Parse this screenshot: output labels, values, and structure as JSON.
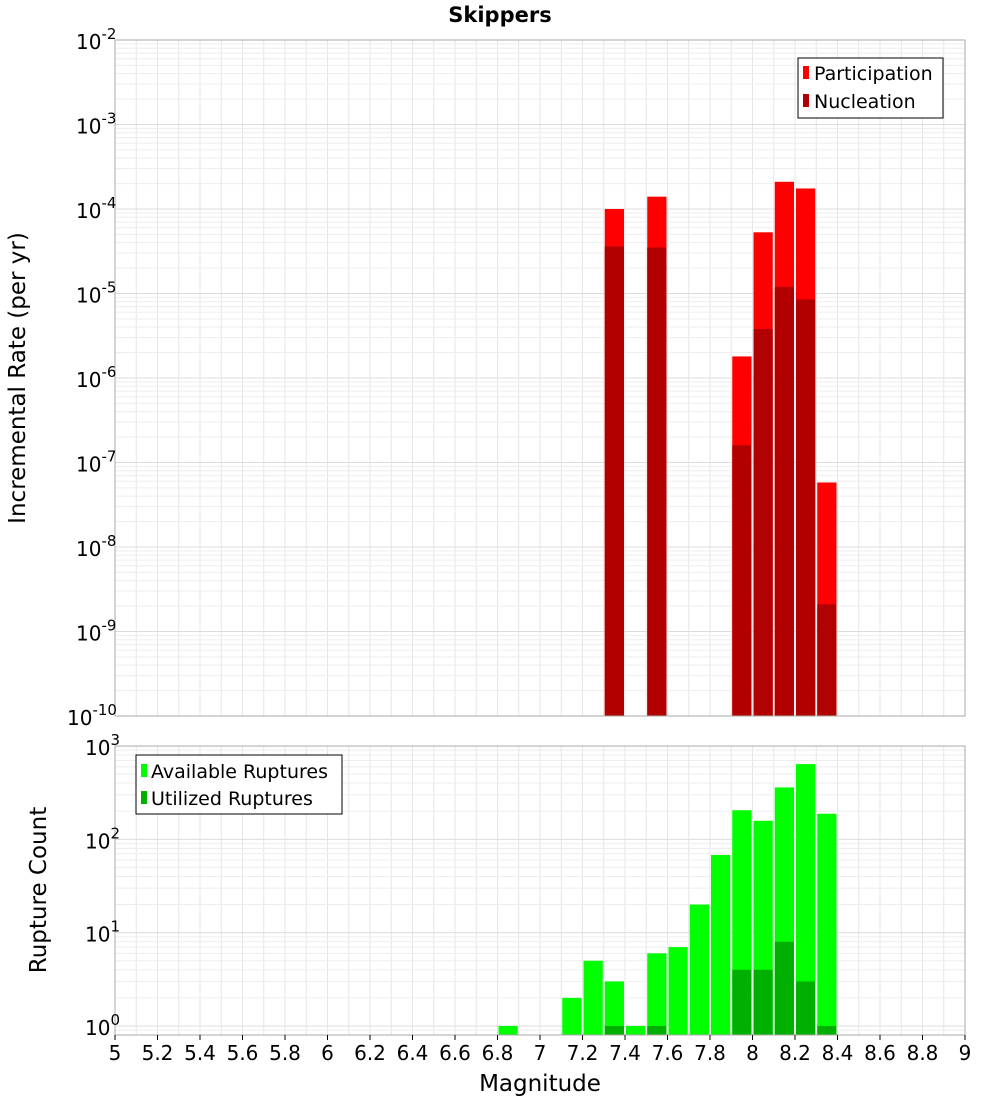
{
  "chart_data": [
    {
      "type": "bar",
      "title": "Skippers",
      "ylabel": "Incremental Rate (per yr)",
      "xlabel": "",
      "y_scale": "log",
      "ylim": [
        1e-10,
        0.01
      ],
      "xlim": [
        5,
        9
      ],
      "y_ticks": [
        {
          "base": "10",
          "exp": "-10"
        },
        {
          "base": "10",
          "exp": "-9"
        },
        {
          "base": "10",
          "exp": "-8"
        },
        {
          "base": "10",
          "exp": "-7"
        },
        {
          "base": "10",
          "exp": "-6"
        },
        {
          "base": "10",
          "exp": "-5"
        },
        {
          "base": "10",
          "exp": "-4"
        },
        {
          "base": "10",
          "exp": "-3"
        },
        {
          "base": "10",
          "exp": "-2"
        }
      ],
      "legend_position": "top-right",
      "grid": true,
      "bin_width": 0.1,
      "series": [
        {
          "name": "Participation",
          "color": "#ff0000",
          "x": [
            7.35,
            7.55,
            7.95,
            8.05,
            8.15,
            8.25,
            8.35
          ],
          "values": [
            0.0001,
            0.00014,
            1.8e-06,
            5.3e-05,
            0.00021,
            0.000175,
            5.8e-08
          ]
        },
        {
          "name": "Nucleation",
          "color": "#b20000",
          "x": [
            7.35,
            7.55,
            7.95,
            8.05,
            8.15,
            8.25,
            8.35
          ],
          "values": [
            3.6e-05,
            3.5e-05,
            1.6e-07,
            3.8e-06,
            1.2e-05,
            8.5e-06,
            2.1e-09
          ]
        }
      ]
    },
    {
      "type": "bar",
      "title": "",
      "ylabel": "Rupture Count",
      "xlabel": "Magnitude",
      "y_scale": "log",
      "ylim": [
        0.8,
        1000
      ],
      "xlim": [
        5,
        9
      ],
      "x_ticks": [
        "5",
        "5.2",
        "5.4",
        "5.6",
        "5.8",
        "6",
        "6.2",
        "6.4",
        "6.6",
        "6.8",
        "7",
        "7.2",
        "7.4",
        "7.6",
        "7.8",
        "8",
        "8.2",
        "8.4",
        "8.6",
        "8.8",
        "9"
      ],
      "y_ticks": [
        {
          "base": "10",
          "exp": "0"
        },
        {
          "base": "10",
          "exp": "1"
        },
        {
          "base": "10",
          "exp": "2"
        },
        {
          "base": "10",
          "exp": "3"
        }
      ],
      "legend_position": "top-left",
      "grid": true,
      "bin_width": 0.1,
      "series": [
        {
          "name": "Available Ruptures",
          "color": "#00ff00",
          "x": [
            6.85,
            7.15,
            7.25,
            7.35,
            7.45,
            7.55,
            7.65,
            7.75,
            7.85,
            7.95,
            8.05,
            8.15,
            8.25,
            8.35
          ],
          "values": [
            1,
            2,
            5,
            3,
            1,
            6,
            7,
            20,
            68,
            205,
            158,
            360,
            640,
            188
          ]
        },
        {
          "name": "Utilized Ruptures",
          "color": "#00b000",
          "x": [
            7.35,
            7.55,
            7.95,
            8.05,
            8.15,
            8.25,
            8.35
          ],
          "values": [
            1,
            1,
            4,
            4,
            8,
            3,
            1
          ]
        }
      ]
    }
  ]
}
